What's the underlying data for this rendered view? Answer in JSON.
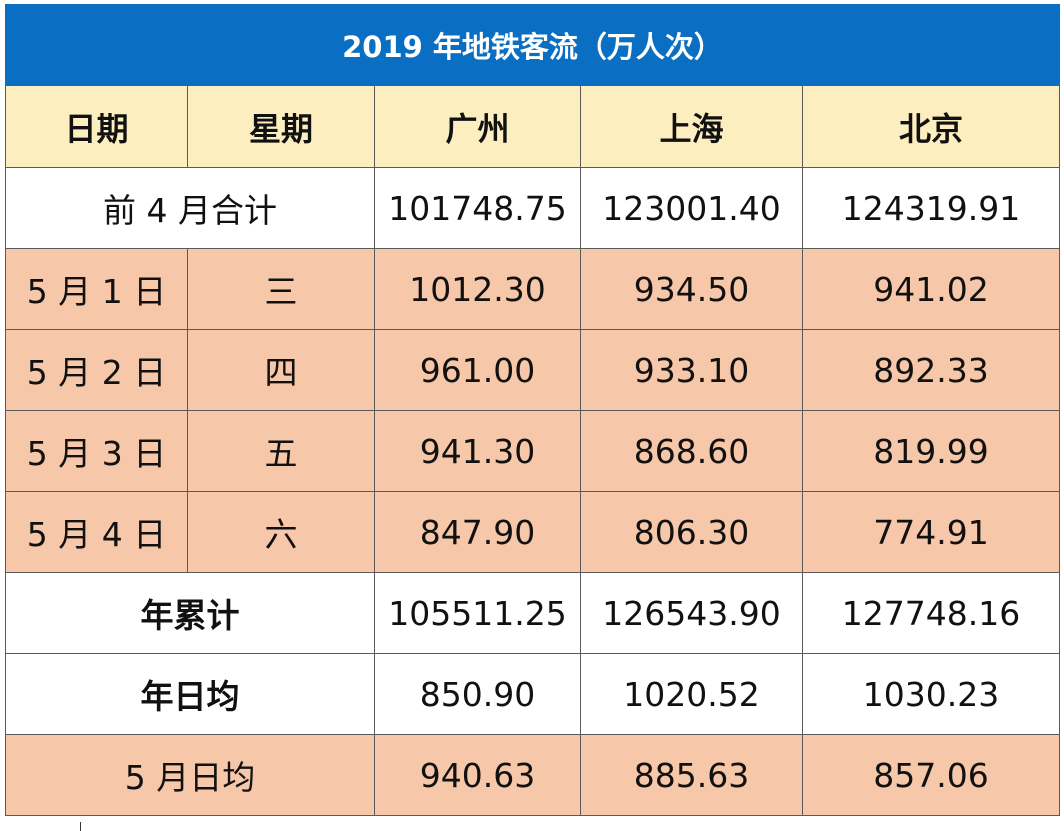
{
  "title": "2019 年地铁客流（万人次）",
  "headers": [
    "日期",
    "星期",
    "广州",
    "上海",
    "北京"
  ],
  "rows": [
    {
      "label": "前 4 月合计",
      "values": [
        "101748.75",
        "123001.40",
        "124319.91"
      ]
    },
    {
      "date": "5 月 1 日",
      "weekday": "三",
      "values": [
        "1012.30",
        "934.50",
        "941.02"
      ]
    },
    {
      "date": "5 月 2 日",
      "weekday": "四",
      "values": [
        "961.00",
        "933.10",
        "892.33"
      ]
    },
    {
      "date": "5 月 3 日",
      "weekday": "五",
      "values": [
        "941.30",
        "868.60",
        "819.99"
      ]
    },
    {
      "date": "5 月 4 日",
      "weekday": "六",
      "values": [
        "847.90",
        "806.30",
        "774.91"
      ]
    },
    {
      "label": "年累计",
      "values": [
        "105511.25",
        "126543.90",
        "127748.16"
      ]
    },
    {
      "label": "年日均",
      "values": [
        "850.90",
        "1020.52",
        "1030.23"
      ]
    },
    {
      "label": "5 月日均",
      "values": [
        "940.63",
        "885.63",
        "857.06"
      ]
    }
  ],
  "colors": {
    "title_bg": "#0a6fc2",
    "header_bg": "#fdeec0",
    "row_orange": "#f6c7a8",
    "row_white": "#ffffff"
  }
}
